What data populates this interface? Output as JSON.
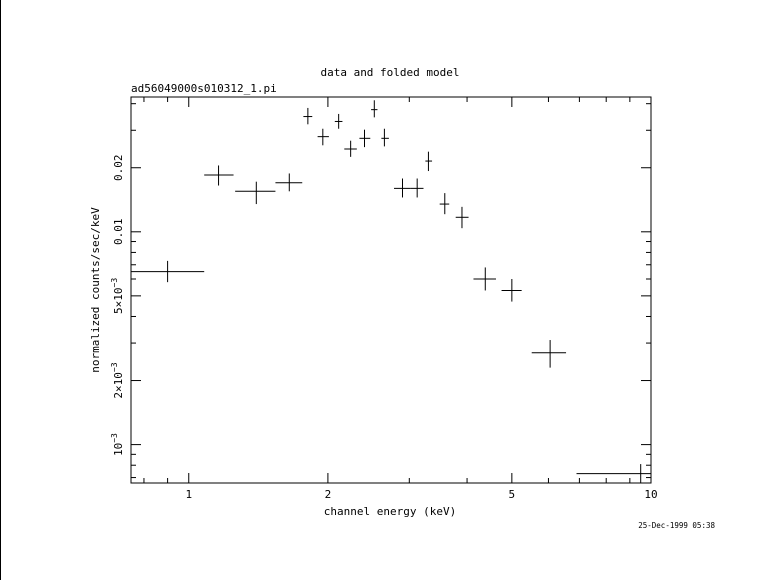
{
  "chart_data": {
    "type": "scatter",
    "title": "data and folded model",
    "subtitle": "ad56049000s010312_1.pi",
    "xlabel": "channel energy (keV)",
    "ylabel": "normalized counts/sec/keV",
    "xscale": "log",
    "yscale": "log",
    "xlim": [
      0.75,
      10
    ],
    "ylim": [
      0.00066,
      0.043
    ],
    "grid": false,
    "legend": "none",
    "x_ticks": [
      {
        "value": 1,
        "label": "1"
      },
      {
        "value": 2,
        "label": "2"
      },
      {
        "value": 5,
        "label": "5"
      },
      {
        "value": 10,
        "label": "10"
      }
    ],
    "y_ticks": [
      {
        "value": 0.001,
        "label": "10",
        "exp": "−3"
      },
      {
        "value": 0.002,
        "label": "2×10",
        "exp": "−3"
      },
      {
        "value": 0.005,
        "label": "5×10",
        "exp": "−3"
      },
      {
        "value": 0.01,
        "label": "0.01",
        "exp": ""
      },
      {
        "value": 0.02,
        "label": "0.02",
        "exp": ""
      }
    ],
    "points": [
      {
        "x": 0.9,
        "xlo": 0.75,
        "xhi": 1.08,
        "y": 0.0065,
        "ylo": 0.0058,
        "yhi": 0.0073
      },
      {
        "x": 1.16,
        "xlo": 1.08,
        "xhi": 1.25,
        "y": 0.0185,
        "ylo": 0.0165,
        "yhi": 0.0205
      },
      {
        "x": 1.4,
        "xlo": 1.26,
        "xhi": 1.54,
        "y": 0.0155,
        "ylo": 0.0135,
        "yhi": 0.0172
      },
      {
        "x": 1.65,
        "xlo": 1.54,
        "xhi": 1.76,
        "y": 0.017,
        "ylo": 0.0155,
        "yhi": 0.0188
      },
      {
        "x": 1.81,
        "xlo": 1.77,
        "xhi": 1.85,
        "y": 0.0348,
        "ylo": 0.032,
        "yhi": 0.0382
      },
      {
        "x": 1.95,
        "xlo": 1.9,
        "xhi": 2.01,
        "y": 0.028,
        "ylo": 0.0255,
        "yhi": 0.0305
      },
      {
        "x": 2.11,
        "xlo": 2.07,
        "xhi": 2.15,
        "y": 0.033,
        "ylo": 0.0305,
        "yhi": 0.0358
      },
      {
        "x": 2.24,
        "xlo": 2.17,
        "xhi": 2.31,
        "y": 0.0245,
        "ylo": 0.0225,
        "yhi": 0.0268
      },
      {
        "x": 2.4,
        "xlo": 2.34,
        "xhi": 2.47,
        "y": 0.0275,
        "ylo": 0.025,
        "yhi": 0.0302
      },
      {
        "x": 2.52,
        "xlo": 2.48,
        "xhi": 2.56,
        "y": 0.0375,
        "ylo": 0.0345,
        "yhi": 0.0415
      },
      {
        "x": 2.65,
        "xlo": 2.61,
        "xhi": 2.71,
        "y": 0.0275,
        "ylo": 0.0252,
        "yhi": 0.0305
      },
      {
        "x": 2.9,
        "xlo": 2.78,
        "xhi": 3.02,
        "y": 0.016,
        "ylo": 0.0145,
        "yhi": 0.0178
      },
      {
        "x": 3.12,
        "xlo": 3.02,
        "xhi": 3.22,
        "y": 0.016,
        "ylo": 0.0145,
        "yhi": 0.0178
      },
      {
        "x": 3.3,
        "xlo": 3.25,
        "xhi": 3.36,
        "y": 0.0215,
        "ylo": 0.0193,
        "yhi": 0.0238
      },
      {
        "x": 3.58,
        "xlo": 3.49,
        "xhi": 3.66,
        "y": 0.0135,
        "ylo": 0.0121,
        "yhi": 0.0152
      },
      {
        "x": 3.9,
        "xlo": 3.78,
        "xhi": 4.03,
        "y": 0.0117,
        "ylo": 0.0104,
        "yhi": 0.0131
      },
      {
        "x": 4.38,
        "xlo": 4.13,
        "xhi": 4.62,
        "y": 0.006,
        "ylo": 0.0053,
        "yhi": 0.0068
      },
      {
        "x": 5.0,
        "xlo": 4.75,
        "xhi": 5.25,
        "y": 0.0053,
        "ylo": 0.0047,
        "yhi": 0.006
      },
      {
        "x": 6.05,
        "xlo": 5.52,
        "xhi": 6.55,
        "y": 0.0027,
        "ylo": 0.0023,
        "yhi": 0.0031
      },
      {
        "x": 9.5,
        "xlo": 6.9,
        "xhi": 10.0,
        "y": 0.00073,
        "ylo": 0.00066,
        "yhi": 0.00081
      }
    ]
  },
  "footer": {
    "timestamp": "25-Dec-1999 05:38"
  }
}
